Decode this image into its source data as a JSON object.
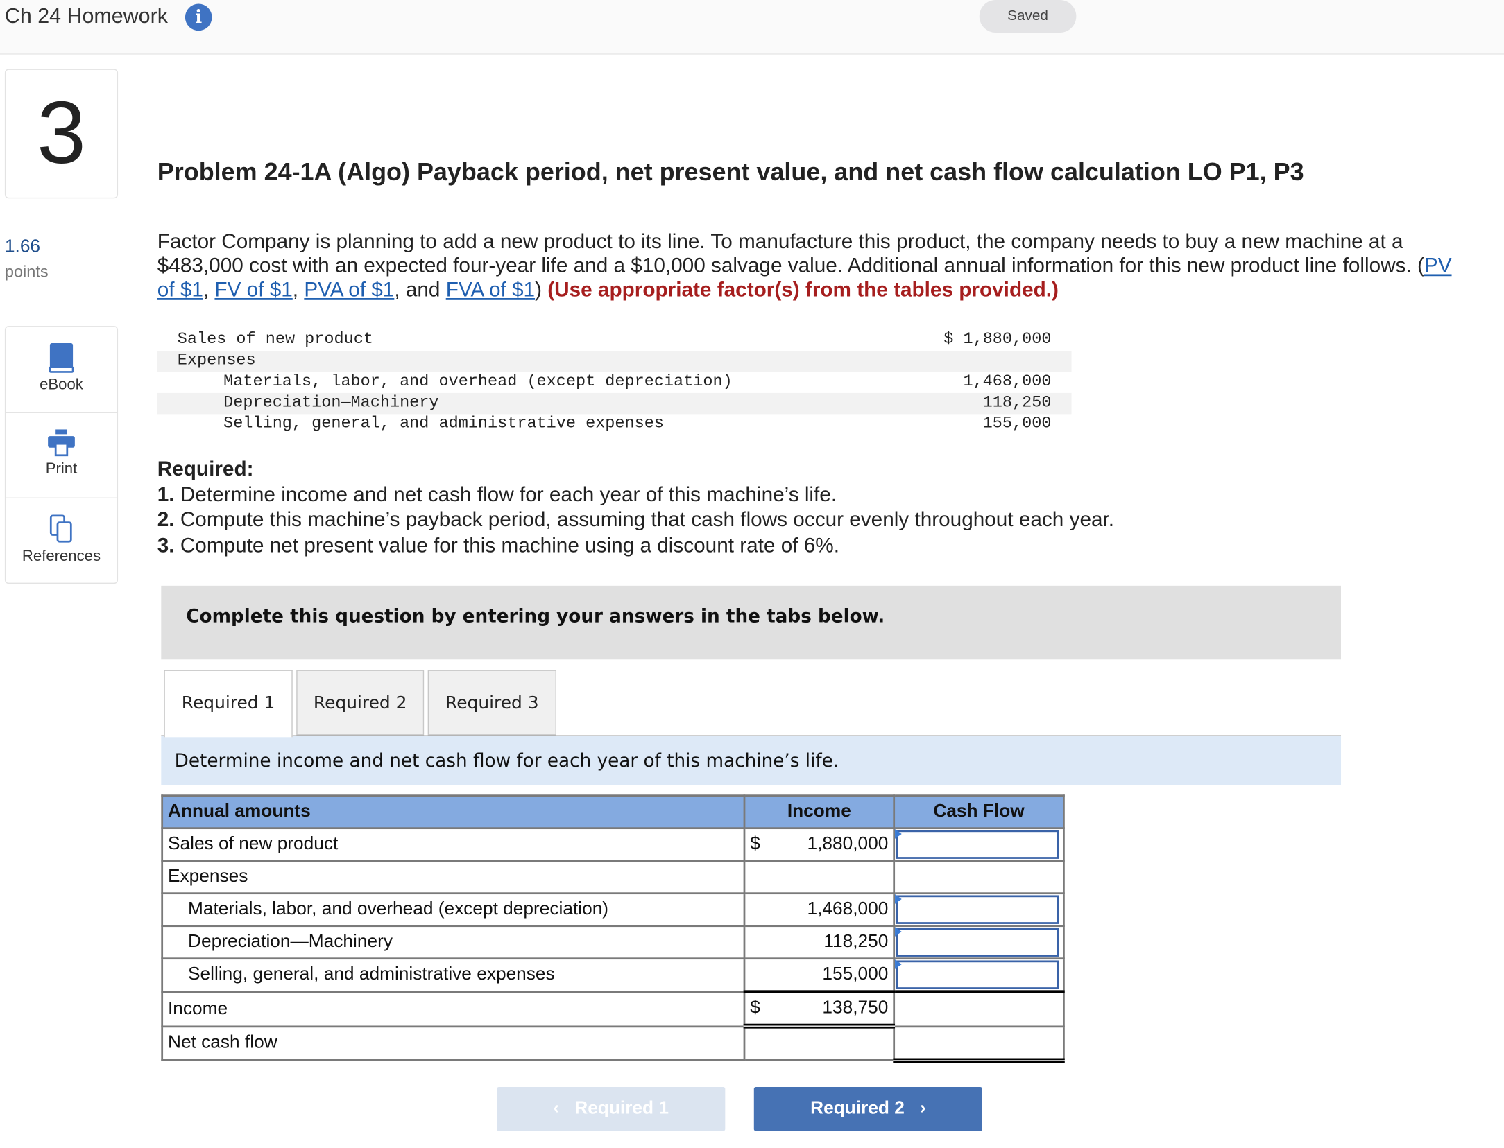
{
  "header": {
    "title": "Ch 24 Homework",
    "info_icon": "info-icon",
    "status": "Saved"
  },
  "question": {
    "number": "3",
    "points_value": "1.66",
    "points_label": "points"
  },
  "side_nav": [
    {
      "label": "eBook",
      "icon": "book-icon"
    },
    {
      "label": "Print",
      "icon": "printer-icon"
    },
    {
      "label": "References",
      "icon": "copy-icon"
    }
  ],
  "problem": {
    "title": "Problem 24-1A (Algo) Payback period, net present value, and net cash flow calculation LO P1, P3",
    "intro": "Factor Company is planning to add a new product to its line. To manufacture this product, the company needs to buy a new machine at a $483,000 cost with an expected four-year life and a $10,000 salvage value. Additional annual information for this new product line follows. (",
    "links": [
      "PV of $1",
      "FV of $1",
      "PVA of $1",
      "FVA of $1"
    ],
    "sep1": ", ",
    "sep2": ", ",
    "sep3": ", and ",
    "close": ") ",
    "warning": "(Use appropriate factor(s) from the tables provided.)"
  },
  "given_table": [
    {
      "label": "Sales of new product",
      "value": "$ 1,880,000"
    },
    {
      "label": "Expenses",
      "value": ""
    },
    {
      "label": "Materials, labor, and overhead (except depreciation)",
      "value": "1,468,000"
    },
    {
      "label": "Depreciation—Machinery",
      "value": "118,250"
    },
    {
      "label": "Selling, general, and administrative expenses",
      "value": "155,000"
    }
  ],
  "required": {
    "heading": "Required:",
    "items": [
      {
        "num": "1.",
        "text": " Determine income and net cash flow for each year of this machine’s life."
      },
      {
        "num": "2.",
        "text": " Compute this machine’s payback period, assuming that cash flows occur evenly throughout each year."
      },
      {
        "num": "3.",
        "text": " Compute net present value for this machine using a discount rate of 6%."
      }
    ]
  },
  "complete_note": "Complete this question by entering your answers in the tabs below.",
  "tabs": [
    {
      "label": "Required 1",
      "active": true
    },
    {
      "label": "Required 2",
      "active": false
    },
    {
      "label": "Required 3",
      "active": false
    }
  ],
  "instruction": "Determine income and net cash flow for each year of this machine’s life.",
  "answer_table": {
    "headers": [
      "Annual amounts",
      "Income",
      "Cash Flow"
    ],
    "rows": [
      {
        "label": "Sales of new product",
        "currency": "$",
        "income": "1,880,000",
        "cash_flow": ""
      },
      {
        "label": "Expenses",
        "currency": "",
        "income": "",
        "cash_flow": ""
      },
      {
        "label": "Materials, labor, and overhead (except depreciation)",
        "currency": "",
        "income": "1,468,000",
        "cash_flow": ""
      },
      {
        "label": "Depreciation—Machinery",
        "currency": "",
        "income": "118,250",
        "cash_flow": ""
      },
      {
        "label": "Selling, general, and administrative expenses",
        "currency": "",
        "income": "155,000",
        "cash_flow": ""
      },
      {
        "label": "Income",
        "currency": "$",
        "income": "138,750",
        "cash_flow": ""
      },
      {
        "label": "Net cash flow",
        "currency": "",
        "income": "",
        "cash_flow": ""
      }
    ]
  },
  "nav": {
    "prev": "Required 1",
    "next": "Required 2",
    "prev_chevron": "‹",
    "next_chevron": "›"
  },
  "colors": {
    "accent": "#4672b4",
    "header_blue": "#84aae0",
    "instruction_bg": "#dde9f7",
    "warning": "#a61e1e"
  }
}
